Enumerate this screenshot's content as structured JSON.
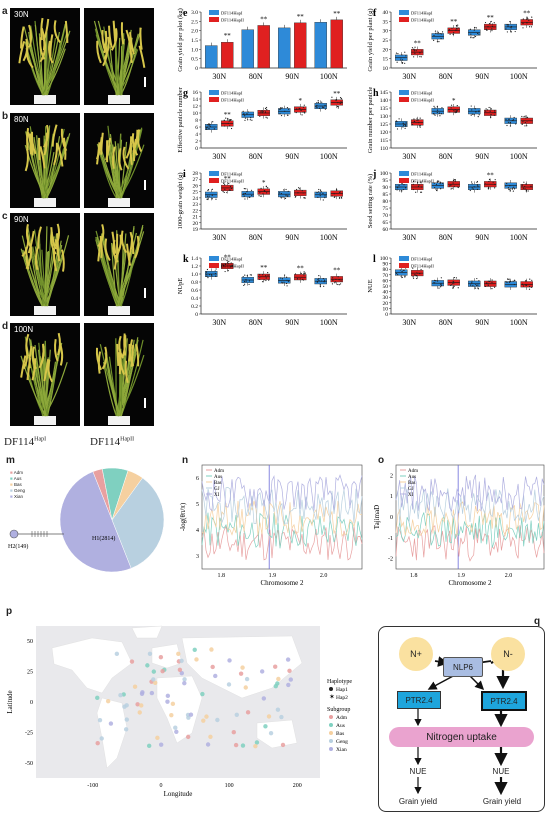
{
  "panel_a_d": {
    "labels": [
      "a",
      "b",
      "c",
      "d"
    ],
    "treatments": [
      "30N",
      "80N",
      "90N",
      "100N"
    ],
    "genotype_left": "DF114",
    "genotype_left_sup": "HapI",
    "genotype_right": "DF114",
    "genotype_right_sup": "HapII"
  },
  "box_panels": {
    "legend": [
      "DF114HapI",
      "DF114HapII"
    ],
    "categories": [
      "30N",
      "80N",
      "90N",
      "100N"
    ],
    "colors": {
      "hapI": "#2e8ad8",
      "hapII": "#e02020"
    }
  },
  "panel_m": {
    "label": "m",
    "legend": [
      "Adm",
      "Aus",
      "Bas",
      "Geng",
      "Xian"
    ],
    "legend_colors": [
      "#e8a0a0",
      "#7fd0c0",
      "#f5d0a0",
      "#b8d0e0",
      "#b0b0e0"
    ],
    "h1_label": "H1(2814)",
    "h2_label": "H2(149)"
  },
  "panel_n": {
    "label": "n",
    "ylabel": "-log(θπ/π)",
    "xlabel": "Chromosome 2",
    "xticks": [
      "1.8",
      "1.9",
      "2.0"
    ],
    "yticks": [
      "3",
      "4",
      "5",
      "6"
    ],
    "legend": [
      "Adm",
      "Aus",
      "Bas",
      "GJ",
      "XI"
    ]
  },
  "panel_o": {
    "label": "o",
    "ylabel": "TajimaD",
    "xlabel": "Chromosome 2",
    "xticks": [
      "1.8",
      "1.9",
      "2.0"
    ],
    "yticks": [
      "-2",
      "-1",
      "0",
      "1",
      "2"
    ],
    "legend": [
      "Adm",
      "Aus",
      "Bas",
      "GJ",
      "XI"
    ]
  },
  "panel_p": {
    "label": "p",
    "ylabel": "Latitude",
    "xlabel": "Longitude",
    "xticks": [
      "-100",
      "0",
      "100",
      "200"
    ],
    "yticks": [
      "-50",
      "-25",
      "0",
      "25",
      "50"
    ],
    "legend_haplotype_title": "Haplotype",
    "legend_haplotypes": [
      "Hap1",
      "Hap2"
    ],
    "legend_subgroup_title": "Subgroup",
    "legend_subgroups": [
      "Adm",
      "Aus",
      "Bas",
      "Geng",
      "Xian"
    ]
  },
  "panel_q": {
    "label": "q",
    "n_plus": "N+",
    "n_minus": "N-",
    "nlp6": "NLP6",
    "ptr_left": "PTR2.4",
    "ptr_right": "PTR2.4",
    "uptake": "Nitrogen uptake",
    "nue_left": "NUE",
    "nue_right": "NUE",
    "yield_left": "Grain yield",
    "yield_right": "Grain yield"
  },
  "chart_data": [
    {
      "label": "e",
      "type": "bar",
      "ylabel": "Grain yield per plot (kg)",
      "categories": [
        "30N",
        "80N",
        "90N",
        "100N"
      ],
      "ylim": [
        0,
        3
      ],
      "yticks": [
        "0",
        "0.5",
        "1.0",
        "1.5",
        "2.0",
        "2.5",
        "3.0"
      ],
      "series": [
        {
          "name": "DF114HapI",
          "values": [
            1.2,
            2.05,
            2.15,
            2.45
          ]
        },
        {
          "name": "DF114HapII",
          "values": [
            1.38,
            2.28,
            2.42,
            2.58
          ]
        }
      ],
      "sig": [
        "**",
        "**",
        "**",
        "**"
      ]
    },
    {
      "label": "f",
      "type": "box",
      "ylabel": "Grain yield per plant (g)",
      "categories": [
        "30N",
        "80N",
        "90N",
        "100N"
      ],
      "ylim": [
        10,
        40
      ],
      "yticks": [
        "10",
        "15",
        "20",
        "25",
        "30",
        "35",
        "40"
      ],
      "series": [
        {
          "name": "DF114HapI",
          "medians": [
            15.5,
            27,
            29,
            32
          ]
        },
        {
          "name": "DF114HapII",
          "medians": [
            18.5,
            30,
            32,
            34.5
          ]
        }
      ],
      "sig": [
        "**",
        "**",
        "**",
        "**"
      ]
    },
    {
      "label": "g",
      "type": "box",
      "ylabel": "Effective panicle number",
      "categories": [
        "30N",
        "80N",
        "90N",
        "100N"
      ],
      "ylim": [
        0,
        16
      ],
      "yticks": [
        "0",
        "2",
        "4",
        "6",
        "8",
        "10",
        "12",
        "14",
        "16"
      ],
      "series": [
        {
          "name": "DF114HapI",
          "medians": [
            6,
            9.5,
            10.5,
            12
          ]
        },
        {
          "name": "DF114HapII",
          "medians": [
            7,
            10,
            11,
            13
          ]
        }
      ],
      "sig": [
        "**",
        "",
        "*",
        "**"
      ]
    },
    {
      "label": "h",
      "type": "box",
      "ylabel": "Grain number per panicle",
      "categories": [
        "30N",
        "80N",
        "90N",
        "100N"
      ],
      "ylim": [
        110,
        145
      ],
      "yticks": [
        "110",
        "115",
        "120",
        "125",
        "130",
        "135",
        "140",
        "145"
      ],
      "series": [
        {
          "name": "DF114HapI",
          "medians": [
            125,
            133,
            133,
            127
          ]
        },
        {
          "name": "DF114HapII",
          "medians": [
            126,
            134,
            132,
            127
          ]
        }
      ],
      "sig": [
        "",
        "*",
        "",
        ""
      ]
    },
    {
      "label": "i",
      "type": "box",
      "ylabel": "1000-grain weight (g)",
      "categories": [
        "30N",
        "80N",
        "90N",
        "100N"
      ],
      "ylim": [
        19,
        28
      ],
      "yticks": [
        "19",
        "20",
        "21",
        "22",
        "23",
        "24",
        "25",
        "26",
        "27",
        "28"
      ],
      "series": [
        {
          "name": "DF114HapI",
          "medians": [
            24.5,
            24.6,
            24.6,
            24.5
          ]
        },
        {
          "name": "DF114HapII",
          "medians": [
            25.6,
            25,
            24.8,
            24.7
          ]
        }
      ],
      "sig": [
        "**",
        "*",
        "",
        ""
      ]
    },
    {
      "label": "j",
      "type": "box",
      "ylabel": "Seed setting rate (%)",
      "categories": [
        "30N",
        "80N",
        "90N",
        "100N"
      ],
      "ylim": [
        60,
        100
      ],
      "yticks": [
        "60",
        "65",
        "70",
        "75",
        "80",
        "85",
        "90",
        "95",
        "100"
      ],
      "series": [
        {
          "name": "DF114HapI",
          "medians": [
            90,
            91,
            90,
            91
          ]
        },
        {
          "name": "DF114HapII",
          "medians": [
            90,
            92,
            92,
            90
          ]
        }
      ],
      "sig": [
        "",
        "",
        "**",
        ""
      ]
    },
    {
      "label": "k",
      "type": "box",
      "ylabel": "NUpE",
      "categories": [
        "30N",
        "80N",
        "90N",
        "100N"
      ],
      "ylim": [
        0,
        1.4
      ],
      "yticks": [
        "0",
        "0.2",
        "0.4",
        "0.6",
        "0.8",
        "1.0",
        "1.2",
        "1.4"
      ],
      "series": [
        {
          "name": "DF114HapI",
          "medians": [
            1.0,
            0.85,
            0.84,
            0.82
          ]
        },
        {
          "name": "DF114HapII",
          "medians": [
            1.2,
            0.93,
            0.92,
            0.87
          ]
        }
      ],
      "sig": [
        "**",
        "**",
        "**",
        "**"
      ]
    },
    {
      "label": "l",
      "type": "box",
      "ylabel": "NUE",
      "categories": [
        "30N",
        "80N",
        "90N",
        "100N"
      ],
      "ylim": [
        0,
        100
      ],
      "yticks": [
        "0",
        "10",
        "20",
        "30",
        "40",
        "50",
        "60",
        "70",
        "80",
        "90",
        "100"
      ],
      "series": [
        {
          "name": "DF114HapI",
          "medians": [
            74,
            55,
            54,
            53
          ]
        },
        {
          "name": "DF114HapII",
          "medians": [
            73,
            56,
            54,
            53
          ]
        }
      ],
      "sig": [
        "",
        "",
        "",
        ""
      ]
    }
  ]
}
